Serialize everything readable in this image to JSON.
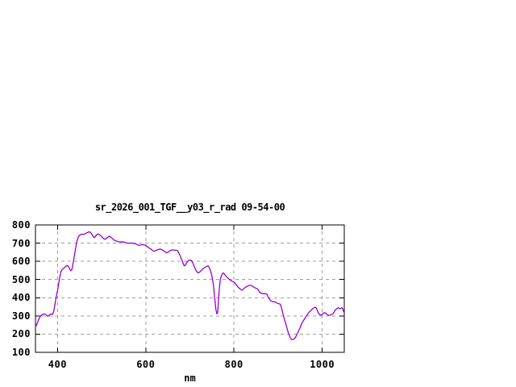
{
  "colors": {
    "background": "#ffffff",
    "axis": "#000000",
    "grid": "#9e9e9e",
    "text": "#000000",
    "line": "#9400d3"
  },
  "chart_data": {
    "type": "line",
    "title": "sr_2026_001_TGF__y03_r_rad 09-54-00",
    "xlabel": "nm",
    "ylabel": "",
    "xlim": [
      350,
      1050
    ],
    "ylim": [
      100,
      800
    ],
    "x_ticks": [
      400,
      600,
      800,
      1000
    ],
    "y_ticks": [
      100,
      200,
      300,
      400,
      500,
      600,
      700,
      800
    ],
    "grid": true,
    "legend_position": "none",
    "series": [
      {
        "name": "sr_2026_001_TGF__y03_r_rad",
        "color": "#9400d3",
        "points": [
          [
            350,
            240
          ],
          [
            352,
            248
          ],
          [
            354,
            260
          ],
          [
            356,
            272
          ],
          [
            358,
            284
          ],
          [
            360,
            294
          ],
          [
            362,
            300
          ],
          [
            364,
            305
          ],
          [
            366,
            308
          ],
          [
            368,
            310
          ],
          [
            370,
            311
          ],
          [
            372,
            309
          ],
          [
            374,
            306
          ],
          [
            376,
            301
          ],
          [
            378,
            299
          ],
          [
            380,
            302
          ],
          [
            382,
            306
          ],
          [
            384,
            309
          ],
          [
            386,
            311
          ],
          [
            388,
            308
          ],
          [
            390,
            314
          ],
          [
            392,
            332
          ],
          [
            394,
            360
          ],
          [
            396,
            392
          ],
          [
            398,
            418
          ],
          [
            400,
            440
          ],
          [
            402,
            468
          ],
          [
            404,
            498
          ],
          [
            406,
            524
          ],
          [
            408,
            544
          ],
          [
            410,
            554
          ],
          [
            412,
            558
          ],
          [
            414,
            562
          ],
          [
            416,
            566
          ],
          [
            418,
            571
          ],
          [
            420,
            575
          ],
          [
            422,
            577
          ],
          [
            424,
            573
          ],
          [
            426,
            566
          ],
          [
            428,
            556
          ],
          [
            430,
            549
          ],
          [
            432,
            552
          ],
          [
            434,
            572
          ],
          [
            436,
            600
          ],
          [
            438,
            628
          ],
          [
            440,
            656
          ],
          [
            442,
            684
          ],
          [
            444,
            710
          ],
          [
            446,
            726
          ],
          [
            448,
            737
          ],
          [
            450,
            743
          ],
          [
            452,
            746
          ],
          [
            454,
            749
          ],
          [
            456,
            750
          ],
          [
            458,
            748
          ],
          [
            460,
            749
          ],
          [
            462,
            751
          ],
          [
            464,
            753
          ],
          [
            466,
            757
          ],
          [
            468,
            759
          ],
          [
            470,
            761
          ],
          [
            472,
            762
          ],
          [
            474,
            760
          ],
          [
            476,
            755
          ],
          [
            478,
            748
          ],
          [
            480,
            740
          ],
          [
            482,
            733
          ],
          [
            484,
            731
          ],
          [
            486,
            737
          ],
          [
            488,
            744
          ],
          [
            490,
            748
          ],
          [
            492,
            750
          ],
          [
            494,
            748
          ],
          [
            496,
            745
          ],
          [
            498,
            741
          ],
          [
            500,
            736
          ],
          [
            502,
            730
          ],
          [
            504,
            726
          ],
          [
            506,
            723
          ],
          [
            508,
            722
          ],
          [
            510,
            724
          ],
          [
            512,
            729
          ],
          [
            514,
            733
          ],
          [
            516,
            736
          ],
          [
            518,
            737
          ],
          [
            520,
            734
          ],
          [
            522,
            730
          ],
          [
            524,
            726
          ],
          [
            526,
            722
          ],
          [
            528,
            718
          ],
          [
            530,
            715
          ],
          [
            533,
            712
          ],
          [
            536,
            709
          ],
          [
            539,
            707
          ],
          [
            542,
            707
          ],
          [
            545,
            708
          ],
          [
            548,
            707
          ],
          [
            551,
            705
          ],
          [
            554,
            703
          ],
          [
            557,
            701
          ],
          [
            560,
            700
          ],
          [
            563,
            700
          ],
          [
            566,
            701
          ],
          [
            569,
            700
          ],
          [
            572,
            699
          ],
          [
            575,
            698
          ],
          [
            578,
            695
          ],
          [
            581,
            691
          ],
          [
            584,
            688
          ],
          [
            587,
            689
          ],
          [
            590,
            691
          ],
          [
            593,
            692
          ],
          [
            596,
            690
          ],
          [
            600,
            688
          ],
          [
            603,
            682
          ],
          [
            606,
            676
          ],
          [
            609,
            671
          ],
          [
            612,
            667
          ],
          [
            615,
            660
          ],
          [
            618,
            656
          ],
          [
            621,
            657
          ],
          [
            624,
            661
          ],
          [
            627,
            664
          ],
          [
            630,
            666
          ],
          [
            633,
            667
          ],
          [
            636,
            665
          ],
          [
            639,
            661
          ],
          [
            642,
            655
          ],
          [
            645,
            650
          ],
          [
            648,
            647
          ],
          [
            651,
            651
          ],
          [
            654,
            657
          ],
          [
            657,
            661
          ],
          [
            660,
            663
          ],
          [
            663,
            662
          ],
          [
            666,
            661
          ],
          [
            669,
            661
          ],
          [
            672,
            659
          ],
          [
            675,
            646
          ],
          [
            678,
            630
          ],
          [
            681,
            612
          ],
          [
            684,
            594
          ],
          [
            687,
            576
          ],
          [
            689,
            577
          ],
          [
            691,
            585
          ],
          [
            693,
            594
          ],
          [
            695,
            600
          ],
          [
            697,
            604
          ],
          [
            699,
            607
          ],
          [
            701,
            607
          ],
          [
            703,
            605
          ],
          [
            705,
            599
          ],
          [
            707,
            589
          ],
          [
            709,
            577
          ],
          [
            711,
            566
          ],
          [
            713,
            554
          ],
          [
            715,
            546
          ],
          [
            717,
            540
          ],
          [
            719,
            537
          ],
          [
            721,
            539
          ],
          [
            723,
            543
          ],
          [
            725,
            548
          ],
          [
            727,
            553
          ],
          [
            729,
            558
          ],
          [
            731,
            562
          ],
          [
            733,
            565
          ],
          [
            735,
            568
          ],
          [
            737,
            571
          ],
          [
            739,
            573
          ],
          [
            741,
            575
          ],
          [
            743,
            570
          ],
          [
            745,
            560
          ],
          [
            747,
            546
          ],
          [
            749,
            530
          ],
          [
            751,
            505
          ],
          [
            753,
            475
          ],
          [
            755,
            430
          ],
          [
            757,
            380
          ],
          [
            759,
            335
          ],
          [
            761,
            313
          ],
          [
            763,
            318
          ],
          [
            765,
            390
          ],
          [
            767,
            460
          ],
          [
            769,
            500
          ],
          [
            771,
            517
          ],
          [
            773,
            528
          ],
          [
            775,
            536
          ],
          [
            777,
            534
          ],
          [
            779,
            528
          ],
          [
            781,
            522
          ],
          [
            783,
            516
          ],
          [
            785,
            511
          ],
          [
            787,
            507
          ],
          [
            789,
            502
          ],
          [
            791,
            498
          ],
          [
            794,
            493
          ],
          [
            797,
            489
          ],
          [
            800,
            486
          ],
          [
            803,
            478
          ],
          [
            806,
            469
          ],
          [
            809,
            459
          ],
          [
            812,
            452
          ],
          [
            815,
            446
          ],
          [
            818,
            441
          ],
          [
            821,
            447
          ],
          [
            824,
            454
          ],
          [
            827,
            459
          ],
          [
            830,
            463
          ],
          [
            833,
            466
          ],
          [
            836,
            468
          ],
          [
            839,
            468
          ],
          [
            842,
            463
          ],
          [
            845,
            458
          ],
          [
            848,
            454
          ],
          [
            851,
            451
          ],
          [
            854,
            447
          ],
          [
            857,
            434
          ],
          [
            860,
            427
          ],
          [
            863,
            424
          ],
          [
            866,
            422
          ],
          [
            869,
            422
          ],
          [
            872,
            421
          ],
          [
            875,
            419
          ],
          [
            878,
            401
          ],
          [
            881,
            390
          ],
          [
            884,
            382
          ],
          [
            887,
            379
          ],
          [
            890,
            378
          ],
          [
            893,
            377
          ],
          [
            896,
            373
          ],
          [
            899,
            369
          ],
          [
            902,
            367
          ],
          [
            905,
            364
          ],
          [
            907,
            350
          ],
          [
            909,
            332
          ],
          [
            911,
            312
          ],
          [
            913,
            294
          ],
          [
            915,
            277
          ],
          [
            917,
            260
          ],
          [
            919,
            243
          ],
          [
            921,
            226
          ],
          [
            923,
            209
          ],
          [
            925,
            196
          ],
          [
            927,
            184
          ],
          [
            929,
            175
          ],
          [
            931,
            171
          ],
          [
            933,
            170
          ],
          [
            935,
            172
          ],
          [
            937,
            175
          ],
          [
            939,
            181
          ],
          [
            941,
            190
          ],
          [
            943,
            200
          ],
          [
            945,
            210
          ],
          [
            947,
            220
          ],
          [
            949,
            230
          ],
          [
            951,
            242
          ],
          [
            953,
            254
          ],
          [
            955,
            265
          ],
          [
            957,
            272
          ],
          [
            959,
            280
          ],
          [
            961,
            288
          ],
          [
            963,
            296
          ],
          [
            965,
            303
          ],
          [
            967,
            310
          ],
          [
            969,
            317
          ],
          [
            971,
            323
          ],
          [
            973,
            327
          ],
          [
            975,
            331
          ],
          [
            977,
            336
          ],
          [
            979,
            341
          ],
          [
            981,
            344
          ],
          [
            983,
            347
          ],
          [
            985,
            347
          ],
          [
            987,
            342
          ],
          [
            989,
            330
          ],
          [
            991,
            318
          ],
          [
            993,
            310
          ],
          [
            995,
            307
          ],
          [
            997,
            305
          ],
          [
            999,
            306
          ],
          [
            1001,
            311
          ],
          [
            1003,
            316
          ],
          [
            1005,
            318
          ],
          [
            1007,
            316
          ],
          [
            1009,
            313
          ],
          [
            1011,
            308
          ],
          [
            1013,
            305
          ],
          [
            1015,
            304
          ],
          [
            1017,
            304
          ],
          [
            1019,
            305
          ],
          [
            1021,
            307
          ],
          [
            1023,
            310
          ],
          [
            1025,
            314
          ],
          [
            1027,
            322
          ],
          [
            1029,
            330
          ],
          [
            1031,
            336
          ],
          [
            1033,
            340
          ],
          [
            1035,
            343
          ],
          [
            1037,
            345
          ],
          [
            1039,
            342
          ],
          [
            1041,
            340
          ],
          [
            1043,
            343
          ],
          [
            1045,
            345
          ],
          [
            1047,
            335
          ],
          [
            1049,
            320
          ]
        ]
      }
    ]
  }
}
